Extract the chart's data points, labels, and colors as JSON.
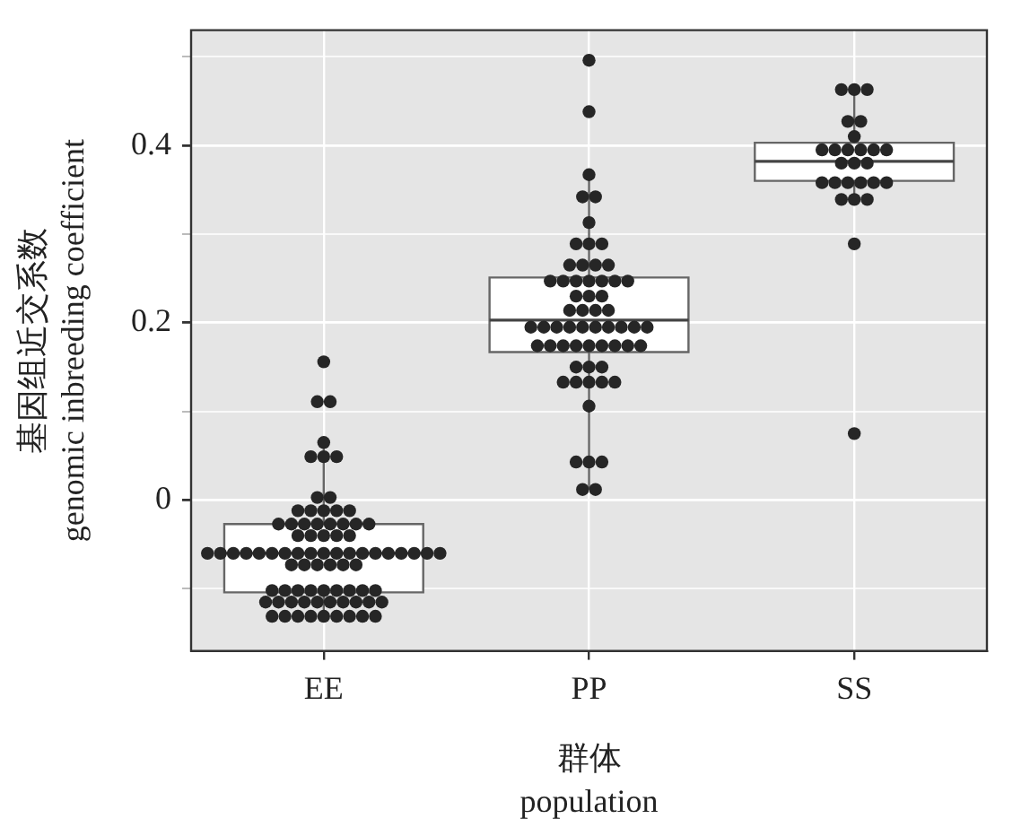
{
  "chart_data": {
    "type": "box",
    "xlabel": "群体\npopulation",
    "ylabel": "基因组近交系数\ngenomic inbreeding coefficient",
    "categories": [
      "EE",
      "PP",
      "SS"
    ],
    "boxes": [
      {
        "low": -0.131,
        "q1": -0.104,
        "median": -0.06,
        "q3": -0.027,
        "high": 0.065
      },
      {
        "low": 0.012,
        "q1": 0.167,
        "median": 0.203,
        "q3": 0.251,
        "high": 0.367
      },
      {
        "low": 0.339,
        "q1": 0.36,
        "median": 0.382,
        "q3": 0.403,
        "high": 0.463
      }
    ],
    "series": [
      {
        "type": "scatter",
        "color": "#262626",
        "x": [
          "EE",
          "EE",
          "EE",
          "EE",
          "EE",
          "EE",
          "EE",
          "EE",
          "EE",
          "EE",
          "EE",
          "EE",
          "EE",
          "EE",
          "EE",
          "EE",
          "EE",
          "EE",
          "EE",
          "EE",
          "EE",
          "EE",
          "EE",
          "EE",
          "EE",
          "EE",
          "EE",
          "EE",
          "EE",
          "EE",
          "EE",
          "EE",
          "EE",
          "EE",
          "EE",
          "EE",
          "EE",
          "EE",
          "EE",
          "EE",
          "EE",
          "EE",
          "EE",
          "EE",
          "EE",
          "EE",
          "EE",
          "EE",
          "EE",
          "EE",
          "EE",
          "EE",
          "EE",
          "EE",
          "EE",
          "EE",
          "EE",
          "EE",
          "EE",
          "EE",
          "EE",
          "EE",
          "EE",
          "EE",
          "EE",
          "EE",
          "EE",
          "EE",
          "EE",
          "EE",
          "EE",
          "EE",
          "EE",
          "EE",
          "EE",
          "EE",
          "EE",
          "EE",
          "EE",
          "EE",
          "PP",
          "PP",
          "PP",
          "PP",
          "PP",
          "PP",
          "PP",
          "PP",
          "PP",
          "PP",
          "PP",
          "PP",
          "PP",
          "PP",
          "PP",
          "PP",
          "PP",
          "PP",
          "PP",
          "PP",
          "PP",
          "PP",
          "PP",
          "PP",
          "PP",
          "PP",
          "PP",
          "PP",
          "PP",
          "PP",
          "PP",
          "PP",
          "PP",
          "PP",
          "PP",
          "PP",
          "PP",
          "PP",
          "PP",
          "PP",
          "PP",
          "PP",
          "PP",
          "PP",
          "PP",
          "PP",
          "PP",
          "PP",
          "PP",
          "PP",
          "PP",
          "PP",
          "PP",
          "PP",
          "PP",
          "PP",
          "PP",
          "PP",
          "PP",
          "PP",
          "SS",
          "SS",
          "SS",
          "SS",
          "SS",
          "SS",
          "SS",
          "SS",
          "SS",
          "SS",
          "SS",
          "SS",
          "SS",
          "SS",
          "SS",
          "SS",
          "SS",
          "SS",
          "SS",
          "SS",
          "SS",
          "SS",
          "SS",
          "SS",
          "SS",
          "SS"
        ],
        "values": [
          0.156,
          0.111,
          0.111,
          0.065,
          0.049,
          0.049,
          0.049,
          0.003,
          0.003,
          -0.012,
          -0.012,
          -0.012,
          -0.012,
          -0.012,
          -0.027,
          -0.027,
          -0.027,
          -0.027,
          -0.027,
          -0.027,
          -0.027,
          -0.027,
          -0.04,
          -0.04,
          -0.04,
          -0.04,
          -0.04,
          -0.06,
          -0.06,
          -0.06,
          -0.06,
          -0.06,
          -0.06,
          -0.06,
          -0.06,
          -0.06,
          -0.06,
          -0.06,
          -0.06,
          -0.06,
          -0.06,
          -0.06,
          -0.06,
          -0.06,
          -0.06,
          -0.06,
          -0.073,
          -0.073,
          -0.073,
          -0.073,
          -0.073,
          -0.073,
          -0.102,
          -0.102,
          -0.102,
          -0.102,
          -0.102,
          -0.102,
          -0.102,
          -0.102,
          -0.102,
          -0.115,
          -0.115,
          -0.115,
          -0.115,
          -0.115,
          -0.115,
          -0.115,
          -0.115,
          -0.115,
          -0.115,
          -0.131,
          -0.131,
          -0.131,
          -0.131,
          -0.131,
          -0.131,
          -0.131,
          -0.131,
          -0.131,
          0.496,
          0.438,
          0.367,
          0.342,
          0.342,
          0.313,
          0.289,
          0.289,
          0.289,
          0.265,
          0.265,
          0.265,
          0.265,
          0.247,
          0.247,
          0.247,
          0.247,
          0.247,
          0.247,
          0.247,
          0.23,
          0.23,
          0.23,
          0.214,
          0.214,
          0.214,
          0.214,
          0.195,
          0.195,
          0.195,
          0.195,
          0.195,
          0.195,
          0.195,
          0.195,
          0.195,
          0.195,
          0.174,
          0.174,
          0.174,
          0.174,
          0.174,
          0.174,
          0.174,
          0.174,
          0.174,
          0.15,
          0.15,
          0.15,
          0.133,
          0.133,
          0.133,
          0.133,
          0.133,
          0.106,
          0.043,
          0.043,
          0.043,
          0.012,
          0.012,
          0.463,
          0.463,
          0.463,
          0.427,
          0.427,
          0.41,
          0.395,
          0.395,
          0.395,
          0.395,
          0.395,
          0.395,
          0.38,
          0.38,
          0.38,
          0.358,
          0.358,
          0.358,
          0.358,
          0.358,
          0.358,
          0.339,
          0.339,
          0.339,
          0.289,
          0.075
        ]
      }
    ],
    "ylim": [
      -0.17,
      0.53
    ],
    "yticks": [
      {
        "value": -0.1,
        "label": null
      },
      0,
      {
        "value": 0.1,
        "label": null
      },
      0.2,
      {
        "value": 0.3,
        "label": null
      },
      0.4,
      {
        "value": 0.5,
        "label": null
      }
    ],
    "grid": true,
    "legend": false,
    "marker": "circle"
  }
}
